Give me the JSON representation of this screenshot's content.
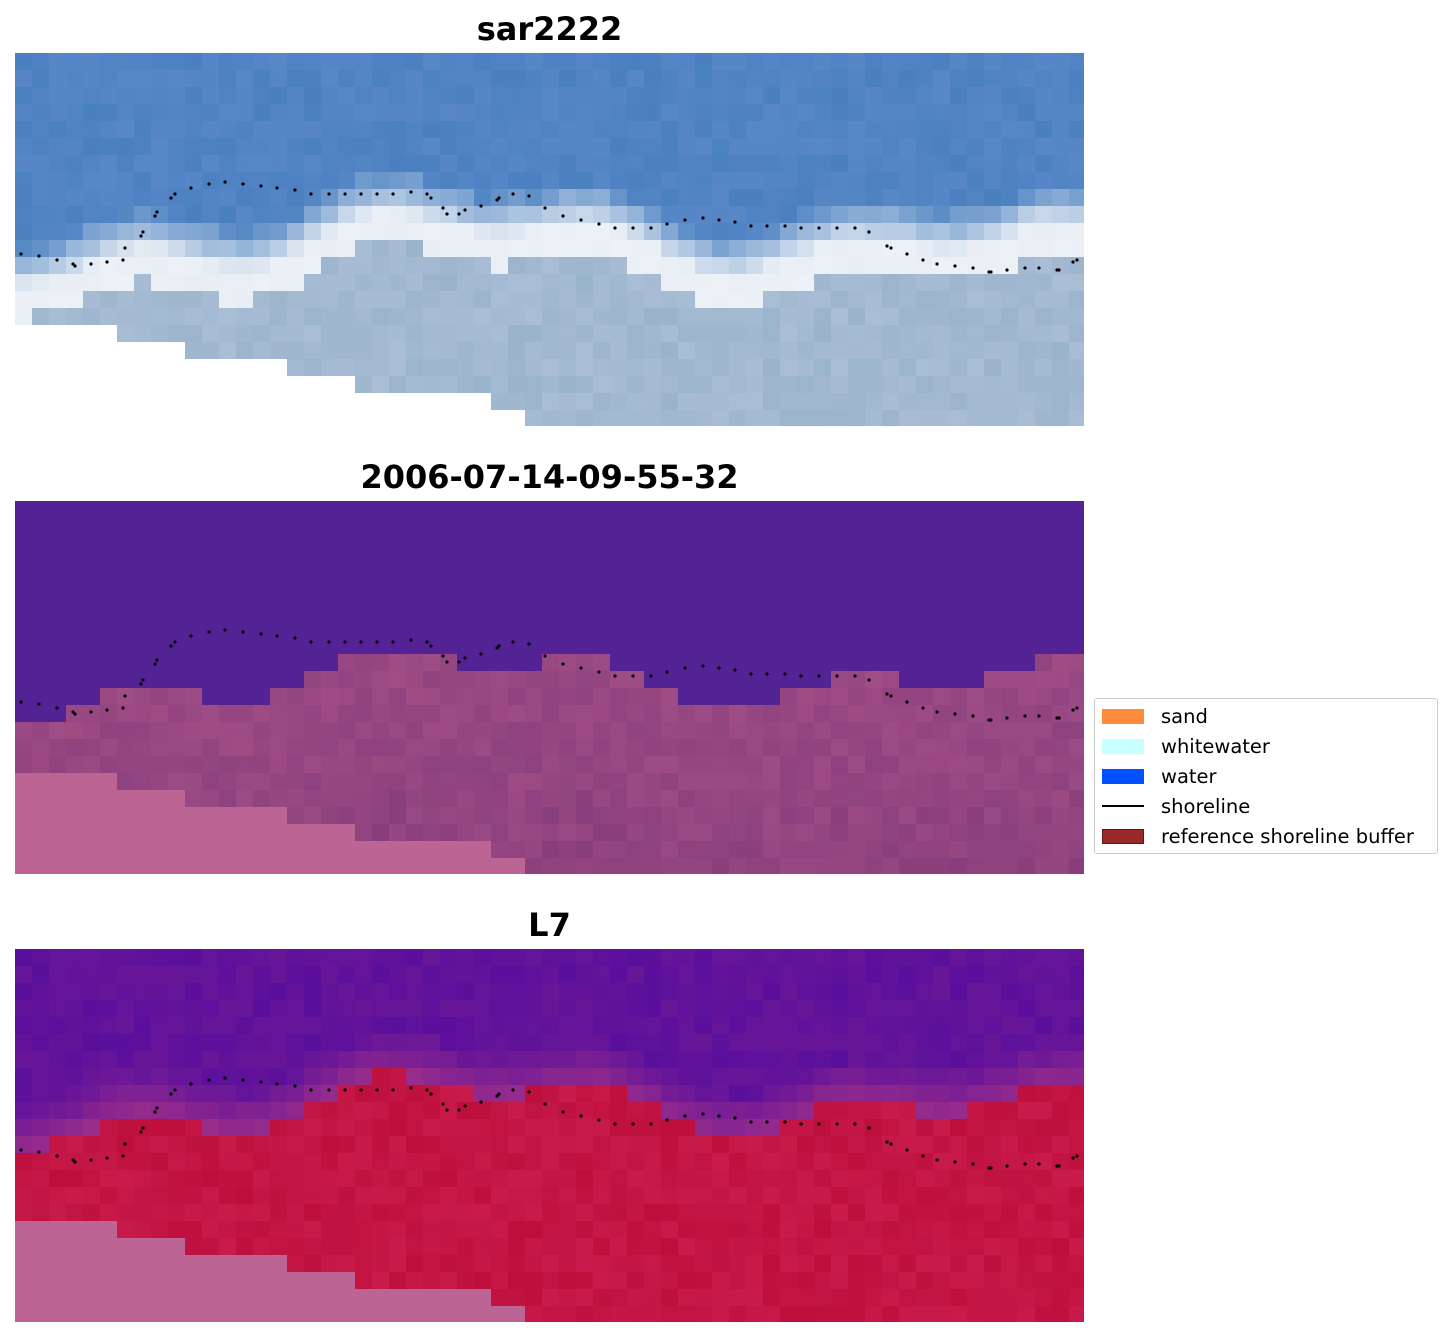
{
  "panels": [
    {
      "id": "rgb",
      "title": "sar2222"
    },
    {
      "id": "classification",
      "title": "2006-07-14-09-55-32"
    },
    {
      "id": "index",
      "title": "L7"
    }
  ],
  "legend": {
    "items": [
      {
        "label": "sand",
        "color": "#ff8c3c",
        "kind": "patch"
      },
      {
        "label": "whitewater",
        "color": "#c8ffff",
        "kind": "patch"
      },
      {
        "label": "water",
        "color": "#0050ff",
        "kind": "patch"
      },
      {
        "label": "shoreline",
        "color": "#000000",
        "kind": "line"
      },
      {
        "label": "reference shoreline buffer",
        "color": "#9a2a2a",
        "kind": "patch"
      }
    ]
  },
  "colors": {
    "rgb_water": "#4a80c0",
    "rgb_whitewater": "#e8eef4",
    "rgb_land": "#9ab4cc",
    "class_water": "#532396",
    "class_land": "#a24e86",
    "class_nodata": "#bc6494",
    "index_water": "#5a0f9c",
    "index_sand": "#be0f3c",
    "index_nodata": "#bc6494",
    "shoreline": "#000000"
  }
}
